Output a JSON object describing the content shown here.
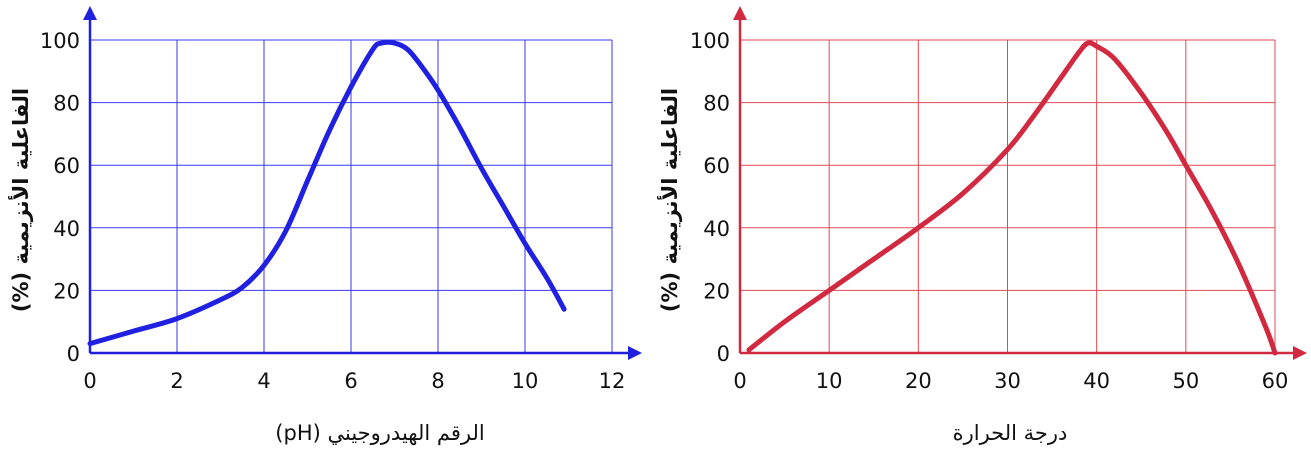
{
  "chart_data": [
    {
      "type": "line",
      "xlabel": "الرقم الهيدروجيني  (pH)",
      "ylabel": "الفاعلية الأنزيمية (%)",
      "xticks": [
        0,
        2,
        4,
        6,
        8,
        10,
        12
      ],
      "yticks": [
        0,
        20,
        40,
        60,
        80,
        100
      ],
      "xlim": [
        0,
        12
      ],
      "ylim": [
        0,
        100
      ],
      "grid": true,
      "color": "#2020e0",
      "grid_color": "#3a3af0",
      "series": [
        {
          "x": [
            0,
            1,
            2,
            3,
            3.5,
            4,
            4.5,
            5,
            5.5,
            6,
            6.5,
            6.7,
            7.0,
            7.3,
            7.6,
            8,
            8.5,
            9,
            9.5,
            10,
            10.5,
            10.9
          ],
          "y": [
            3,
            7,
            11,
            17,
            21,
            28,
            39,
            55,
            71,
            85,
            97,
            99,
            99,
            97,
            92,
            84,
            72,
            59,
            47,
            35,
            24,
            14
          ]
        }
      ]
    },
    {
      "type": "line",
      "xlabel": "درجة الحرارة",
      "ylabel": "الفاعلية الأنزيمية (%)",
      "xticks": [
        0,
        10,
        20,
        30,
        40,
        50,
        60
      ],
      "yticks": [
        0,
        20,
        40,
        60,
        80,
        100
      ],
      "xlim": [
        0,
        60
      ],
      "ylim": [
        0,
        100
      ],
      "grid": true,
      "color": "#d12a40",
      "grid_color": "#e04a55",
      "series": [
        {
          "x": [
            1,
            5,
            10,
            15,
            20,
            25,
            30,
            33,
            36,
            38,
            39,
            40,
            42,
            45,
            48,
            50,
            53,
            56,
            59,
            60
          ],
          "y": [
            1,
            10,
            20,
            30,
            40,
            51,
            65,
            76,
            88,
            96,
            99,
            98,
            94,
            83,
            70,
            60,
            45,
            28,
            8,
            0
          ]
        }
      ]
    }
  ]
}
